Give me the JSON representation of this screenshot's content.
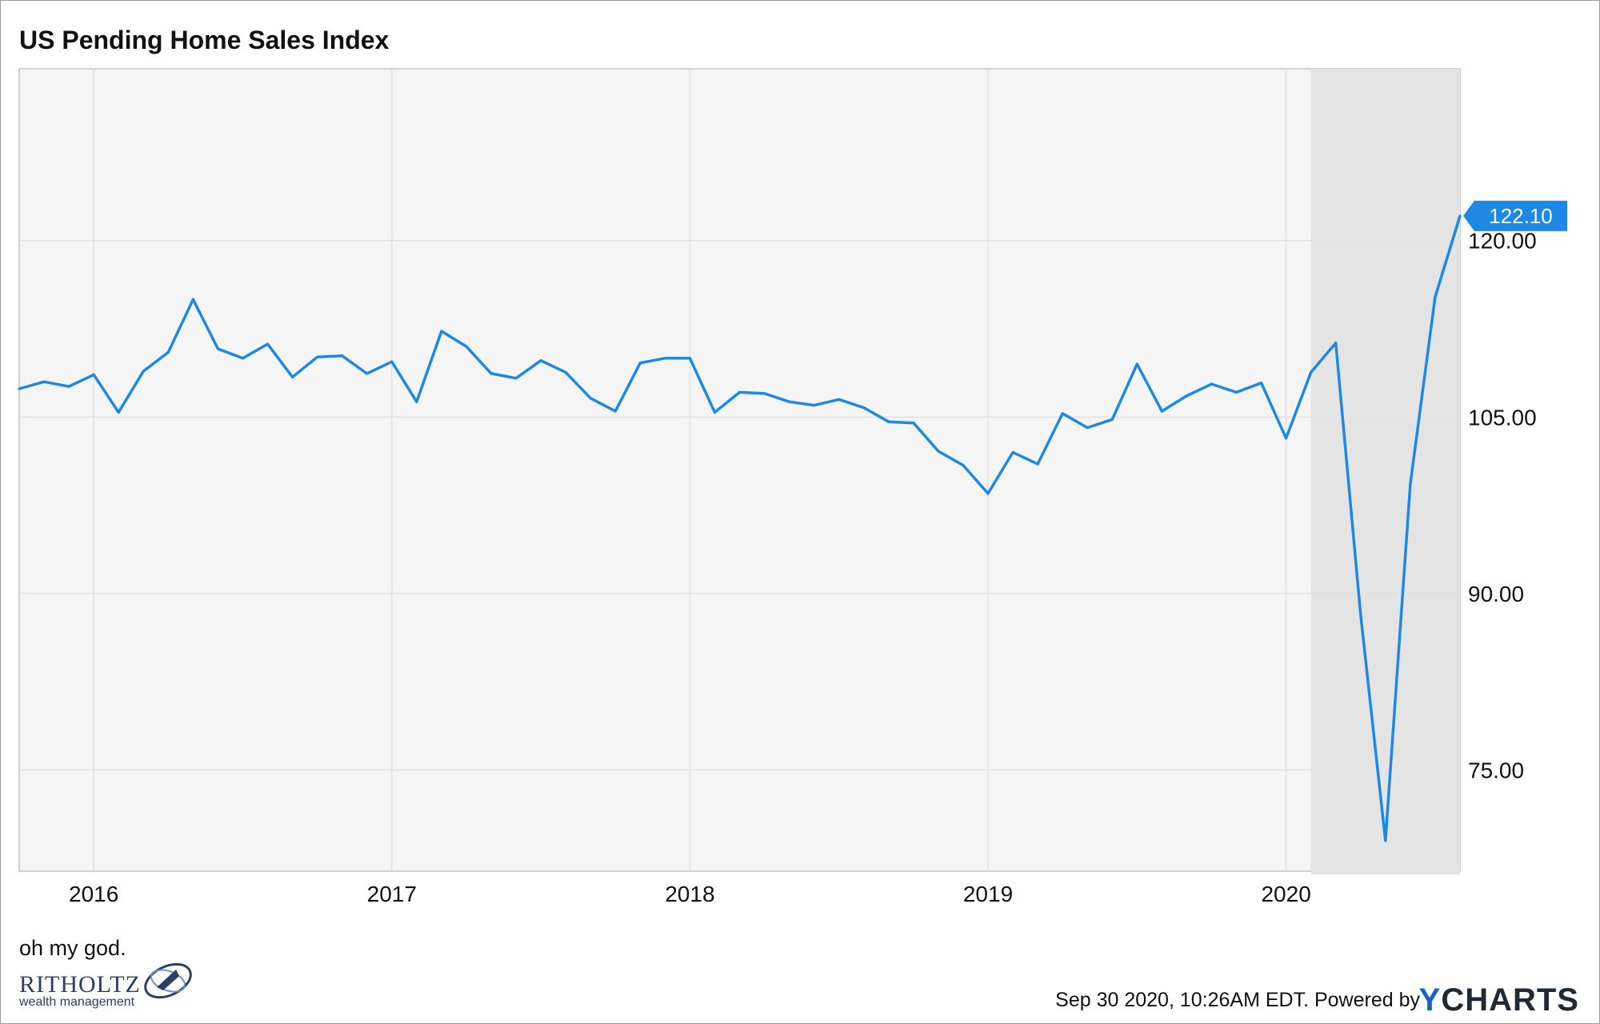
{
  "header": {
    "title": "US Pending Home Sales Index"
  },
  "caption": "oh my god.",
  "footer": {
    "timestamp": "Sep 30 2020, 10:26AM EDT.",
    "powered_by": "Powered by",
    "brand_y": "Y",
    "brand_rest": "CHARTS"
  },
  "logo": {
    "name": "RITHOLTZ",
    "subtitle": "wealth management"
  },
  "colors": {
    "line": "#1e88e5",
    "badge": "#1e88e5",
    "recession_shade": "#e4e4e4",
    "plot_bg": "#f5f5f5"
  },
  "chart_data": {
    "type": "line",
    "title": "US Pending Home Sales Index",
    "xlabel": "",
    "ylabel": "",
    "x_ticks": [
      "2016",
      "2017",
      "2018",
      "2019",
      "2020"
    ],
    "y_ticks": [
      "75.00",
      "90.00",
      "105.00",
      "120.00"
    ],
    "ylim": [
      66.4,
      134.6
    ],
    "xlim": [
      "2015-10",
      "2020-08"
    ],
    "grid": true,
    "shaded_period": {
      "start": "2020-02",
      "end": "2020-08"
    },
    "last_value_label": "122.10",
    "series": [
      {
        "x": [
          "2015-10",
          "2015-11",
          "2015-12",
          "2016-01",
          "2016-02",
          "2016-03",
          "2016-04",
          "2016-05",
          "2016-06",
          "2016-07",
          "2016-08",
          "2016-09",
          "2016-10",
          "2016-11",
          "2016-12",
          "2017-01",
          "2017-02",
          "2017-03",
          "2017-04",
          "2017-05",
          "2017-06",
          "2017-07",
          "2017-08",
          "2017-09",
          "2017-10",
          "2017-11",
          "2017-12",
          "2018-01",
          "2018-02",
          "2018-03",
          "2018-04",
          "2018-05",
          "2018-06",
          "2018-07",
          "2018-08",
          "2018-09",
          "2018-10",
          "2018-11",
          "2018-12",
          "2019-01",
          "2019-02",
          "2019-03",
          "2019-04",
          "2019-05",
          "2019-06",
          "2019-07",
          "2019-08",
          "2019-09",
          "2019-10",
          "2019-11",
          "2019-12",
          "2020-01",
          "2020-02",
          "2020-03",
          "2020-04",
          "2020-05",
          "2020-06",
          "2020-07",
          "2020-08"
        ],
        "values": [
          107.4,
          108.0,
          107.6,
          108.6,
          105.4,
          108.9,
          110.5,
          115.0,
          110.8,
          110.0,
          111.2,
          108.4,
          110.1,
          110.2,
          108.7,
          109.7,
          106.3,
          112.3,
          111.0,
          108.7,
          108.3,
          109.8,
          108.8,
          106.6,
          105.5,
          109.6,
          110.0,
          110.0,
          105.4,
          107.1,
          107.0,
          106.3,
          106.0,
          106.5,
          105.8,
          104.6,
          104.5,
          102.1,
          100.9,
          98.5,
          102.0,
          101.0,
          105.3,
          104.1,
          104.8,
          109.5,
          105.5,
          106.8,
          107.8,
          107.1,
          107.9,
          103.2,
          108.8,
          111.3,
          88.2,
          69.0,
          99.3,
          115.2,
          122.1
        ]
      }
    ]
  }
}
